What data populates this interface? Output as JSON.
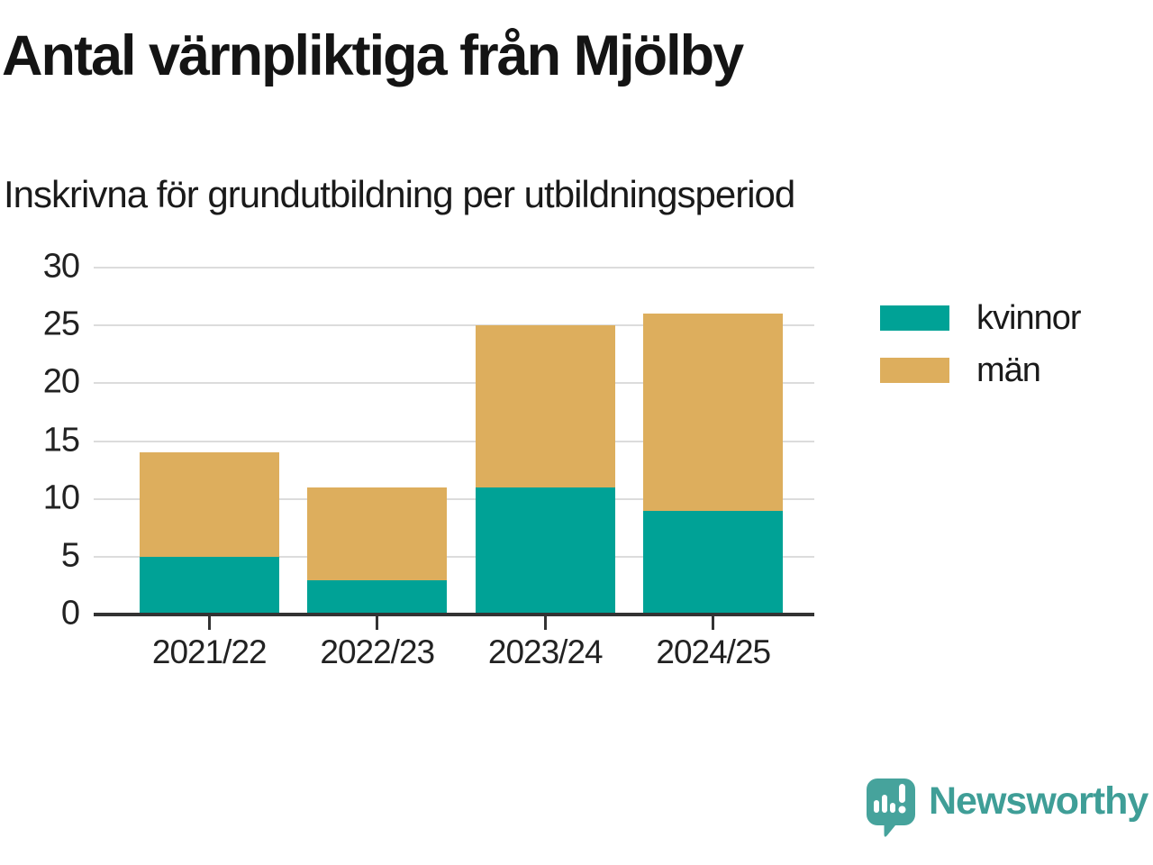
{
  "title": "Antal värnpliktiga från Mjölby",
  "subtitle": "Inskrivna för grundutbildning per utbildningsperiod",
  "colors": {
    "kvinnor": "#00a296",
    "man": "#ddae5d",
    "brand_teal": "#3f9e97",
    "gridline": "#dcdcdc",
    "axis_line": "#333333",
    "text": "#1a1a1a"
  },
  "chart_data": {
    "type": "bar",
    "stacked": true,
    "title": "Antal värnpliktiga från Mjölby",
    "subtitle": "Inskrivna för grundutbildning per utbildningsperiod",
    "categories": [
      "2021/22",
      "2022/23",
      "2023/24",
      "2024/25"
    ],
    "series": [
      {
        "name": "kvinnor",
        "color": "#00a296",
        "values": [
          5,
          3,
          11,
          9
        ]
      },
      {
        "name": "män",
        "color": "#ddae5d",
        "values": [
          9,
          8,
          14,
          17
        ]
      }
    ],
    "totals": [
      14,
      11,
      25,
      26
    ],
    "xlabel": "",
    "ylabel": "",
    "ylim": [
      0,
      30
    ],
    "yticks": [
      0,
      5,
      10,
      15,
      20,
      25,
      30
    ],
    "grid": "horizontal",
    "legend_position": "right"
  },
  "legend": {
    "items": [
      {
        "label": "kvinnor",
        "color": "#00a296"
      },
      {
        "label": "män",
        "color": "#ddae5d"
      }
    ]
  },
  "brand": {
    "name": "Newsworthy",
    "logo_icon": "speech-bubble-bar-chart-icon"
  }
}
